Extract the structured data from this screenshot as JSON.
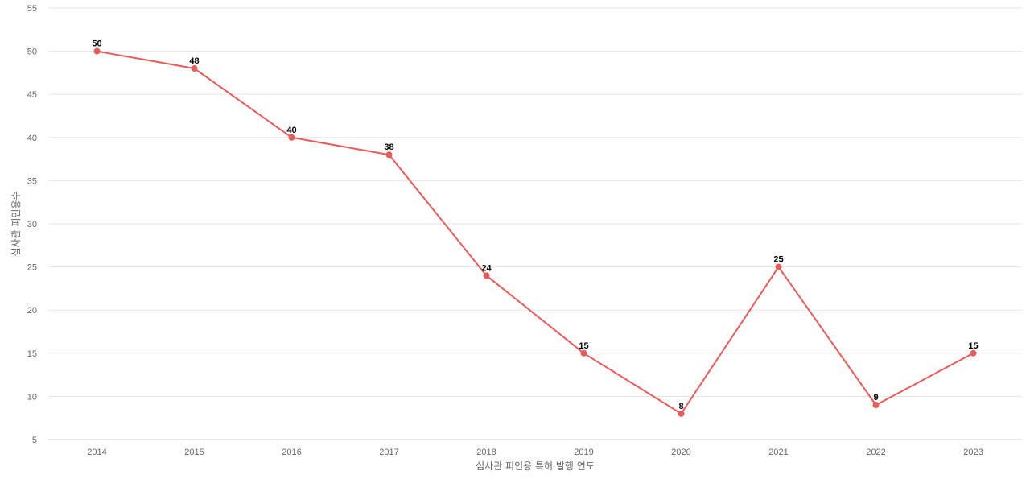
{
  "chart_data": {
    "type": "line",
    "title": "",
    "xlabel": "심사관 피인용 특허 발행 연도",
    "ylabel": "심사관 피인용수",
    "categories": [
      "2014",
      "2015",
      "2016",
      "2017",
      "2018",
      "2019",
      "2020",
      "2021",
      "2022",
      "2023"
    ],
    "series": [
      {
        "values": [
          50,
          48,
          40,
          38,
          24,
          15,
          8,
          25,
          9,
          15
        ],
        "color": "#e85b5b"
      }
    ],
    "ylim": [
      5,
      55
    ],
    "yticks": [
      5,
      10,
      15,
      20,
      25,
      30,
      35,
      40,
      45,
      50,
      55
    ],
    "grid": true,
    "data_labels": true,
    "legend": "none"
  }
}
